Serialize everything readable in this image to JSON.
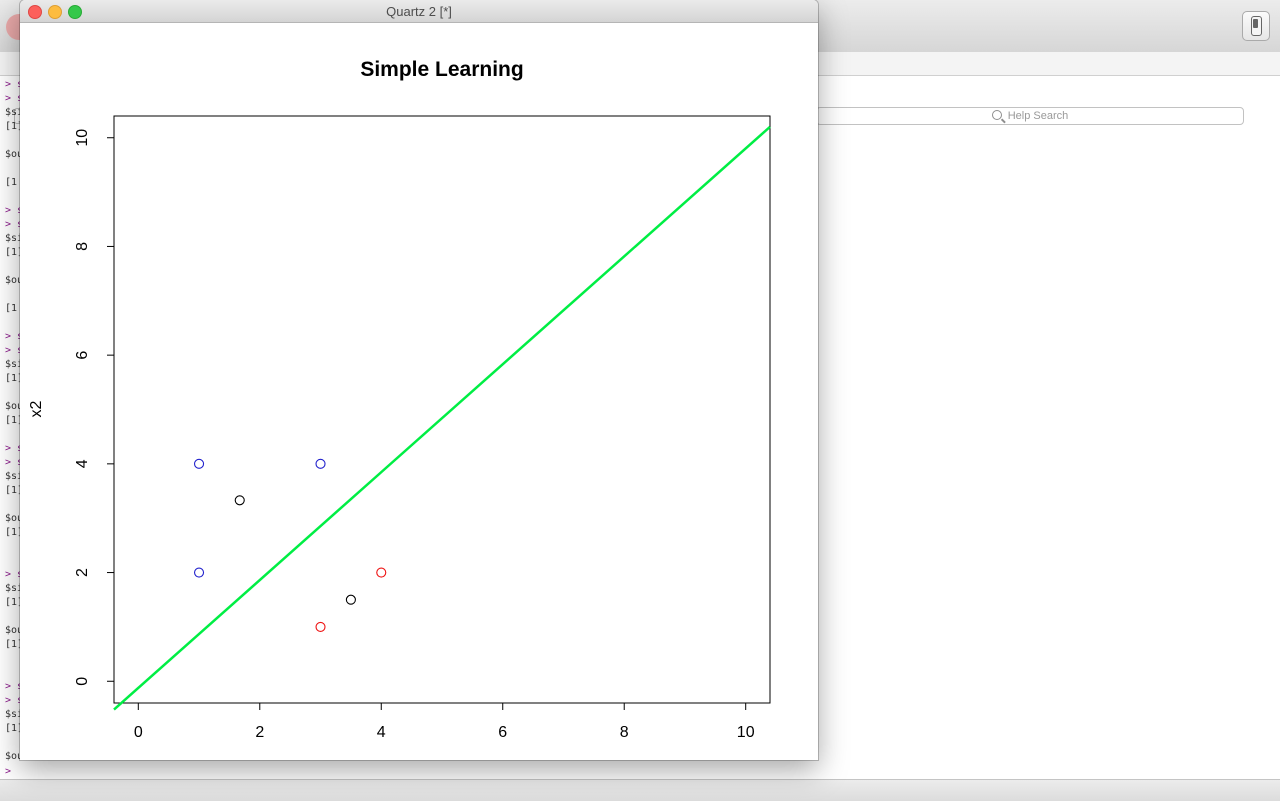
{
  "help_search": {
    "placeholder": "Help Search"
  },
  "console": {
    "lines": [
      {
        "text": "> s",
        "kind": "prompt"
      },
      {
        "text": "> s",
        "kind": "prompt"
      },
      {
        "text": "$si",
        "kind": "out"
      },
      {
        "text": "[1]",
        "kind": "out"
      },
      {
        "text": "",
        "kind": "out"
      },
      {
        "text": "$ou",
        "kind": "out"
      },
      {
        "text": "",
        "kind": "out"
      },
      {
        "text": "[1",
        "kind": "out"
      },
      {
        "text": "",
        "kind": "out"
      },
      {
        "text": "> s",
        "kind": "prompt"
      },
      {
        "text": "> s",
        "kind": "prompt"
      },
      {
        "text": "$si",
        "kind": "out"
      },
      {
        "text": "[1]",
        "kind": "out"
      },
      {
        "text": "",
        "kind": "out"
      },
      {
        "text": "$ou",
        "kind": "out"
      },
      {
        "text": "",
        "kind": "out"
      },
      {
        "text": "[1",
        "kind": "out"
      },
      {
        "text": "",
        "kind": "out"
      },
      {
        "text": "> s",
        "kind": "prompt"
      },
      {
        "text": "> s",
        "kind": "prompt"
      },
      {
        "text": "$si",
        "kind": "out"
      },
      {
        "text": "[1]",
        "kind": "out"
      },
      {
        "text": "",
        "kind": "out"
      },
      {
        "text": "$ou",
        "kind": "out"
      },
      {
        "text": "[1]",
        "kind": "out"
      },
      {
        "text": "",
        "kind": "out"
      },
      {
        "text": "> s",
        "kind": "prompt"
      },
      {
        "text": "> s",
        "kind": "prompt"
      },
      {
        "text": "$si",
        "kind": "out"
      },
      {
        "text": "[1]",
        "kind": "out"
      },
      {
        "text": "",
        "kind": "out"
      },
      {
        "text": "$ou",
        "kind": "out"
      },
      {
        "text": "[1]",
        "kind": "out"
      },
      {
        "text": "",
        "kind": "out"
      },
      {
        "text": "",
        "kind": "out"
      },
      {
        "text": "> s",
        "kind": "prompt"
      },
      {
        "text": "$si",
        "kind": "out"
      },
      {
        "text": "[1]",
        "kind": "out"
      },
      {
        "text": "",
        "kind": "out"
      },
      {
        "text": "$ou",
        "kind": "out"
      },
      {
        "text": "[1]",
        "kind": "out"
      },
      {
        "text": "",
        "kind": "out"
      },
      {
        "text": "",
        "kind": "out"
      },
      {
        "text": "> s",
        "kind": "prompt"
      },
      {
        "text": "> s",
        "kind": "prompt"
      },
      {
        "text": "$si",
        "kind": "out"
      },
      {
        "text": "[1]",
        "kind": "out"
      },
      {
        "text": "",
        "kind": "out"
      },
      {
        "text": "$ou",
        "kind": "out"
      },
      {
        "text": "",
        "kind": "out"
      },
      {
        "text": "[1",
        "kind": "out"
      }
    ],
    "final_prompt": ">"
  },
  "quartz_window": {
    "title": "Quartz 2 [*]"
  },
  "chart_data": {
    "type": "scatter",
    "title": "Simple Learning",
    "xlabel": "",
    "ylabel": "x2",
    "xlim": [
      -0.4,
      10.4
    ],
    "ylim": [
      -0.4,
      10.4
    ],
    "x_ticks": [
      0,
      2,
      4,
      6,
      8,
      10
    ],
    "y_ticks": [
      0,
      2,
      4,
      6,
      8,
      10
    ],
    "series": [
      {
        "color": "#2020cc",
        "points": [
          [
            1,
            4
          ],
          [
            3,
            4
          ],
          [
            1,
            2
          ]
        ]
      },
      {
        "color": "#ee1111",
        "points": [
          [
            4,
            2
          ],
          [
            3,
            1
          ]
        ]
      },
      {
        "color": "#000000",
        "points": [
          [
            1.67,
            3.33
          ],
          [
            3.5,
            1.5
          ]
        ]
      }
    ],
    "line": {
      "color": "#00ee44",
      "x": [
        -0.4,
        10.4
      ],
      "y": [
        -0.52,
        10.2
      ]
    }
  }
}
